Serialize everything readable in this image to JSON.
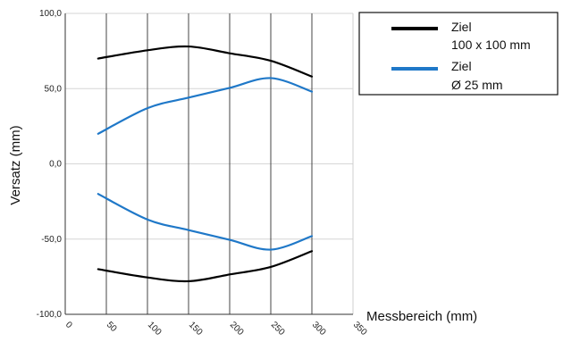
{
  "chart_data": {
    "type": "line",
    "xlabel": "Messbereich (mm)",
    "ylabel": "Versatz (mm)",
    "xlim": [
      0,
      350
    ],
    "ylim": [
      -100,
      100
    ],
    "x_ticks": [
      "0",
      "50",
      "100",
      "150",
      "200",
      "250",
      "300",
      "350"
    ],
    "y_ticks": [
      "-100,0",
      "-50,0",
      "0,0",
      "50,0",
      "100,0"
    ],
    "grid": true,
    "legend_position": "top-right",
    "legend": [
      {
        "line1": "Ziel",
        "line2": "100 x 100 mm",
        "color": "#000000"
      },
      {
        "line1": "Ziel",
        "line2": "Ø 25 mm",
        "color": "#1f78c8"
      }
    ],
    "series": [
      {
        "legend_index": 0,
        "color": "#000000",
        "x": [
          40,
          100,
          150,
          200,
          250,
          300
        ],
        "y": [
          70,
          75.5,
          78,
          73.5,
          68.5,
          58
        ]
      },
      {
        "legend_index": 0,
        "color": "#000000",
        "x": [
          40,
          100,
          150,
          200,
          250,
          300
        ],
        "y": [
          -70,
          -75.5,
          -78,
          -73.5,
          -68.5,
          -58
        ]
      },
      {
        "legend_index": 1,
        "color": "#1f78c8",
        "x": [
          40,
          100,
          150,
          200,
          250,
          300
        ],
        "y": [
          20,
          37,
          44,
          50.5,
          57,
          48
        ]
      },
      {
        "legend_index": 1,
        "color": "#1f78c8",
        "x": [
          40,
          100,
          150,
          200,
          250,
          300
        ],
        "y": [
          -20,
          -37,
          -44,
          -50.5,
          -57,
          -48
        ]
      }
    ]
  }
}
